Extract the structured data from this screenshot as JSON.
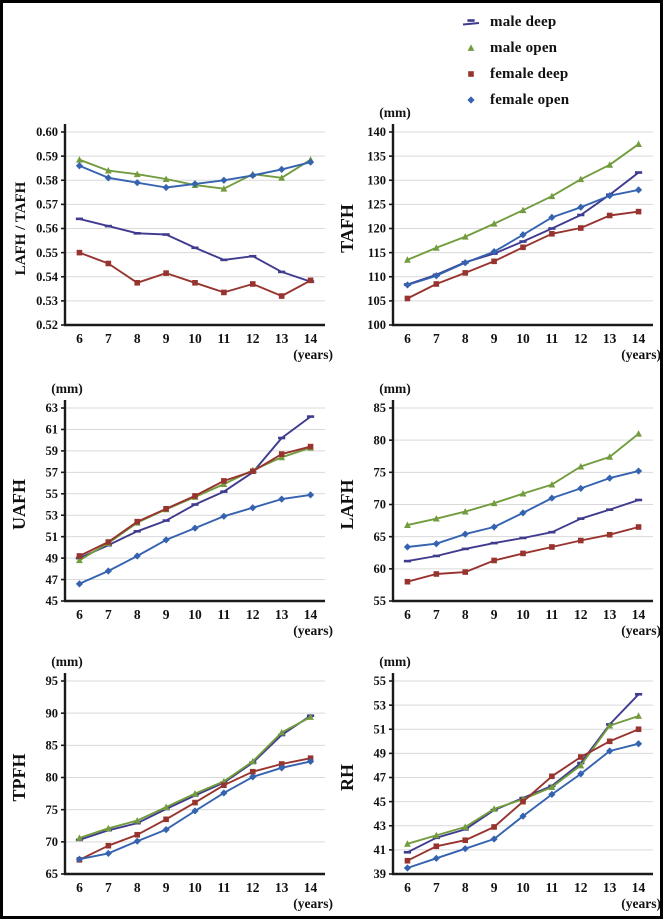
{
  "page": {
    "background": "#ffffff",
    "frame_border": "#000000",
    "grid_color": "#d9d9d9",
    "axis_color": "#1a1a1a",
    "text_color": "#111111"
  },
  "legend": {
    "items": [
      {
        "id": "male_deep",
        "label": "male deep",
        "color": "#3f3b8e",
        "marker": "dash"
      },
      {
        "id": "male_open",
        "label": "male open",
        "color": "#729c3e",
        "marker": "triangle"
      },
      {
        "id": "female_deep",
        "label": "female deep",
        "color": "#97342f",
        "marker": "square"
      },
      {
        "id": "female_open",
        "label": "female open",
        "color": "#3563b0",
        "marker": "diamond"
      }
    ]
  },
  "chart_data": [
    {
      "type": "line",
      "name": "lafh-tafh-ratio",
      "ylabel": "LAFH / TAFH",
      "unit": "",
      "xlabel": "(years)",
      "x": [
        6,
        7,
        8,
        9,
        10,
        11,
        12,
        13,
        14
      ],
      "ylim": [
        0.52,
        0.6
      ],
      "ytick_labels": [
        "0.52",
        "0.53",
        "0.54",
        "0.55",
        "0.56",
        "0.57",
        "0.58",
        "0.59",
        "0.60"
      ],
      "yticks": [
        0.52,
        0.53,
        0.54,
        0.55,
        0.56,
        0.57,
        0.58,
        0.59,
        0.6
      ],
      "grid": true,
      "legend_position": "top-right-of-page",
      "series": [
        {
          "key": "male_deep",
          "name": "male deep",
          "values": [
            0.564,
            0.561,
            0.558,
            0.5575,
            0.552,
            0.547,
            0.5485,
            0.542,
            0.538
          ]
        },
        {
          "key": "male_open",
          "name": "male open",
          "values": [
            0.5885,
            0.584,
            0.5825,
            0.5805,
            0.578,
            0.5765,
            0.5825,
            0.581,
            0.5885
          ]
        },
        {
          "key": "female_deep",
          "name": "female deep",
          "values": [
            0.55,
            0.5455,
            0.5375,
            0.5415,
            0.5375,
            0.5335,
            0.537,
            0.532,
            0.5385
          ]
        },
        {
          "key": "female_open",
          "name": "female open",
          "values": [
            0.586,
            0.581,
            0.579,
            0.577,
            0.5785,
            0.58,
            0.582,
            0.5845,
            0.5875
          ]
        }
      ]
    },
    {
      "type": "line",
      "name": "tafh",
      "ylabel": "TAFH",
      "unit": "(mm)",
      "xlabel": "(years)",
      "x": [
        6,
        7,
        8,
        9,
        10,
        11,
        12,
        13,
        14
      ],
      "ylim": [
        100,
        140
      ],
      "ytick_labels": [
        "100",
        "105",
        "110",
        "115",
        "120",
        "125",
        "130",
        "135",
        "140"
      ],
      "yticks": [
        100,
        105,
        110,
        115,
        120,
        125,
        130,
        135,
        140
      ],
      "grid": true,
      "series": [
        {
          "key": "male_deep",
          "name": "male deep",
          "values": [
            108.4,
            110.4,
            113.0,
            114.8,
            117.3,
            120.0,
            122.8,
            127.0,
            131.6
          ]
        },
        {
          "key": "male_open",
          "name": "male open",
          "values": [
            113.5,
            116.0,
            118.3,
            121.0,
            123.8,
            126.7,
            130.2,
            133.2,
            137.5
          ]
        },
        {
          "key": "female_deep",
          "name": "female deep",
          "values": [
            105.5,
            108.5,
            110.8,
            113.2,
            116.1,
            118.9,
            120.1,
            122.7,
            123.5
          ]
        },
        {
          "key": "female_open",
          "name": "female open",
          "values": [
            108.3,
            110.2,
            112.9,
            115.2,
            118.7,
            122.3,
            124.4,
            126.8,
            128.0
          ]
        }
      ]
    },
    {
      "type": "line",
      "name": "uafh",
      "ylabel": "UAFH",
      "unit": "(mm)",
      "xlabel": "(years)",
      "x": [
        6,
        7,
        8,
        9,
        10,
        11,
        12,
        13,
        14
      ],
      "ylim": [
        45,
        63
      ],
      "ytick_labels": [
        "45",
        "47",
        "49",
        "51",
        "53",
        "55",
        "57",
        "59",
        "61",
        "63"
      ],
      "yticks": [
        45,
        47,
        49,
        51,
        53,
        55,
        57,
        59,
        61,
        63
      ],
      "grid": true,
      "series": [
        {
          "key": "male_deep",
          "name": "male deep",
          "values": [
            49.0,
            50.2,
            51.5,
            52.5,
            54.0,
            55.2,
            57.0,
            60.2,
            62.2
          ]
        },
        {
          "key": "male_open",
          "name": "male open",
          "values": [
            48.8,
            50.4,
            52.3,
            53.55,
            54.7,
            55.9,
            57.2,
            58.4,
            59.3
          ]
        },
        {
          "key": "female_deep",
          "name": "female deep",
          "values": [
            49.2,
            50.5,
            52.4,
            53.6,
            54.8,
            56.2,
            57.1,
            58.7,
            59.4
          ]
        },
        {
          "key": "female_open",
          "name": "female open",
          "values": [
            46.6,
            47.8,
            49.2,
            50.7,
            51.8,
            52.9,
            53.7,
            54.5,
            54.9
          ]
        }
      ]
    },
    {
      "type": "line",
      "name": "lafh",
      "ylabel": "LAFH",
      "unit": "(mm)",
      "xlabel": "(years)",
      "x": [
        6,
        7,
        8,
        9,
        10,
        11,
        12,
        13,
        14
      ],
      "ylim": [
        55,
        85
      ],
      "ytick_labels": [
        "55",
        "60",
        "65",
        "70",
        "75",
        "80",
        "85"
      ],
      "yticks": [
        55,
        60,
        65,
        70,
        75,
        80,
        85
      ],
      "grid": true,
      "series": [
        {
          "key": "male_deep",
          "name": "male deep",
          "values": [
            61.2,
            62.0,
            63.1,
            64.0,
            64.8,
            65.7,
            67.8,
            69.2,
            70.7
          ]
        },
        {
          "key": "male_open",
          "name": "male open",
          "values": [
            66.8,
            67.8,
            68.9,
            70.2,
            71.7,
            73.1,
            75.9,
            77.4,
            81.0
          ]
        },
        {
          "key": "female_deep",
          "name": "female deep",
          "values": [
            58.0,
            59.2,
            59.5,
            61.3,
            62.4,
            63.4,
            64.4,
            65.3,
            66.5
          ]
        },
        {
          "key": "female_open",
          "name": "female open",
          "values": [
            63.4,
            63.9,
            65.4,
            66.5,
            68.7,
            71.0,
            72.5,
            74.1,
            75.2
          ]
        }
      ]
    },
    {
      "type": "line",
      "name": "tpfh",
      "ylabel": "TPFH",
      "unit": "(mm)",
      "xlabel": "(years)",
      "x": [
        6,
        7,
        8,
        9,
        10,
        11,
        12,
        13,
        14
      ],
      "ylim": [
        65,
        95
      ],
      "ytick_labels": [
        "65",
        "70",
        "75",
        "80",
        "85",
        "90",
        "95"
      ],
      "yticks": [
        65,
        70,
        75,
        80,
        85,
        90,
        95
      ],
      "grid": true,
      "series": [
        {
          "key": "male_deep",
          "name": "male deep",
          "values": [
            70.3,
            71.8,
            72.9,
            75.1,
            77.2,
            79.2,
            82.3,
            86.6,
            89.6
          ]
        },
        {
          "key": "male_open",
          "name": "male open",
          "values": [
            70.6,
            72.1,
            73.3,
            75.4,
            77.5,
            79.4,
            82.5,
            87.0,
            89.4
          ]
        },
        {
          "key": "female_deep",
          "name": "female deep",
          "values": [
            67.2,
            69.4,
            71.1,
            73.5,
            76.1,
            78.8,
            80.9,
            82.1,
            83.0
          ]
        },
        {
          "key": "female_open",
          "name": "female open",
          "values": [
            67.3,
            68.2,
            70.1,
            71.9,
            74.8,
            77.6,
            80.1,
            81.5,
            82.5
          ]
        }
      ]
    },
    {
      "type": "line",
      "name": "rh",
      "ylabel": "RH",
      "unit": "(mm)",
      "xlabel": "(years)",
      "x": [
        6,
        7,
        8,
        9,
        10,
        11,
        12,
        13,
        14
      ],
      "ylim": [
        39,
        55
      ],
      "ytick_labels": [
        "39",
        "41",
        "43",
        "45",
        "47",
        "49",
        "51",
        "53",
        "55"
      ],
      "yticks": [
        39,
        41,
        43,
        45,
        47,
        49,
        51,
        53,
        55
      ],
      "grid": true,
      "series": [
        {
          "key": "male_deep",
          "name": "male deep",
          "values": [
            40.8,
            42.0,
            42.7,
            44.3,
            45.3,
            46.3,
            48.2,
            51.4,
            53.9
          ]
        },
        {
          "key": "male_open",
          "name": "male open",
          "values": [
            41.5,
            42.2,
            42.9,
            44.4,
            45.2,
            46.2,
            48.0,
            51.3,
            52.1
          ]
        },
        {
          "key": "female_deep",
          "name": "female deep",
          "values": [
            40.1,
            41.3,
            41.8,
            42.9,
            45.0,
            47.1,
            48.7,
            50.0,
            51.0
          ]
        },
        {
          "key": "female_open",
          "name": "female open",
          "values": [
            39.5,
            40.3,
            41.1,
            41.9,
            43.8,
            45.6,
            47.3,
            49.2,
            49.8
          ]
        }
      ]
    }
  ]
}
